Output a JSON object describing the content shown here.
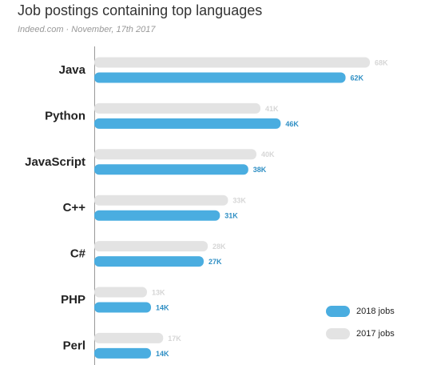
{
  "chart_data": {
    "type": "hbar",
    "title": "Job postings containing top languages",
    "subtitle": "Indeed.com · November, 17th 2017",
    "categories": [
      "Java",
      "Python",
      "JavaScript",
      "C++",
      "C#",
      "PHP",
      "Perl"
    ],
    "series": [
      {
        "name": "2017 jobs",
        "color": "#e3e3e3",
        "values": [
          68000,
          41000,
          40000,
          33000,
          28000,
          13000,
          17000
        ],
        "value_labels": [
          "68K",
          "41K",
          "40K",
          "33K",
          "28K",
          "13K",
          "17K"
        ]
      },
      {
        "name": "2018 jobs",
        "color": "#4aade0",
        "values": [
          62000,
          46000,
          38000,
          31000,
          27000,
          14000,
          14000
        ],
        "value_labels": [
          "62K",
          "46K",
          "38K",
          "31K",
          "27K",
          "14K",
          "14K"
        ]
      }
    ]
  }
}
